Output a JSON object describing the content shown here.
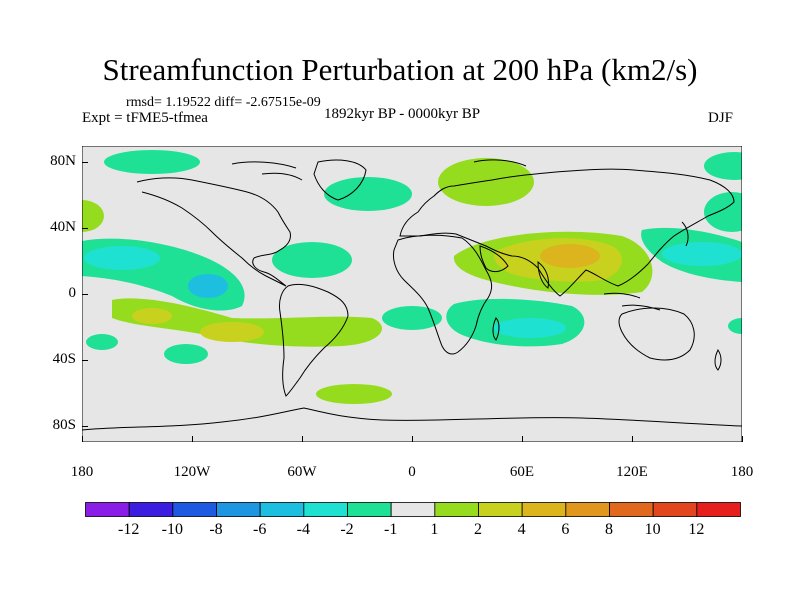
{
  "title": "Streamfunction Perturbation at 200 hPa (km2/s)",
  "stats": "rmsd= 1.19522 diff= -2.67515e-09",
  "experiment": "Expt = tFME5-tfmea",
  "period": "1892kyr BP - 0000kyr BP",
  "season": "DJF",
  "axes": {
    "y_ticks": [
      {
        "label": "80N",
        "lat": 80
      },
      {
        "label": "40N",
        "lat": 40
      },
      {
        "label": "0",
        "lat": 0
      },
      {
        "label": "40S",
        "lat": -40
      },
      {
        "label": "80S",
        "lat": -80
      }
    ],
    "x_ticks": [
      {
        "label": "180",
        "lon": -180
      },
      {
        "label": "120W",
        "lon": -120
      },
      {
        "label": "60W",
        "lon": -60
      },
      {
        "label": "0",
        "lon": 0
      },
      {
        "label": "60E",
        "lon": 60
      },
      {
        "label": "120E",
        "lon": 120
      },
      {
        "label": "180",
        "lon": 180
      }
    ]
  },
  "colorbar": {
    "colors": [
      "#8b1ee6",
      "#3c1ee1",
      "#1e5ae1",
      "#1e96e1",
      "#1ebee1",
      "#1ee1d2",
      "#1ee196",
      "#e6e6e6",
      "#96dc1e",
      "#c8d21e",
      "#dcb41e",
      "#e1961e",
      "#e1691e",
      "#e1461e",
      "#e61e1e"
    ],
    "labels": [
      "-12",
      "-10",
      "-8",
      "-6",
      "-4",
      "-2",
      "-1",
      "1",
      "2",
      "4",
      "6",
      "8",
      "10",
      "12"
    ]
  }
}
